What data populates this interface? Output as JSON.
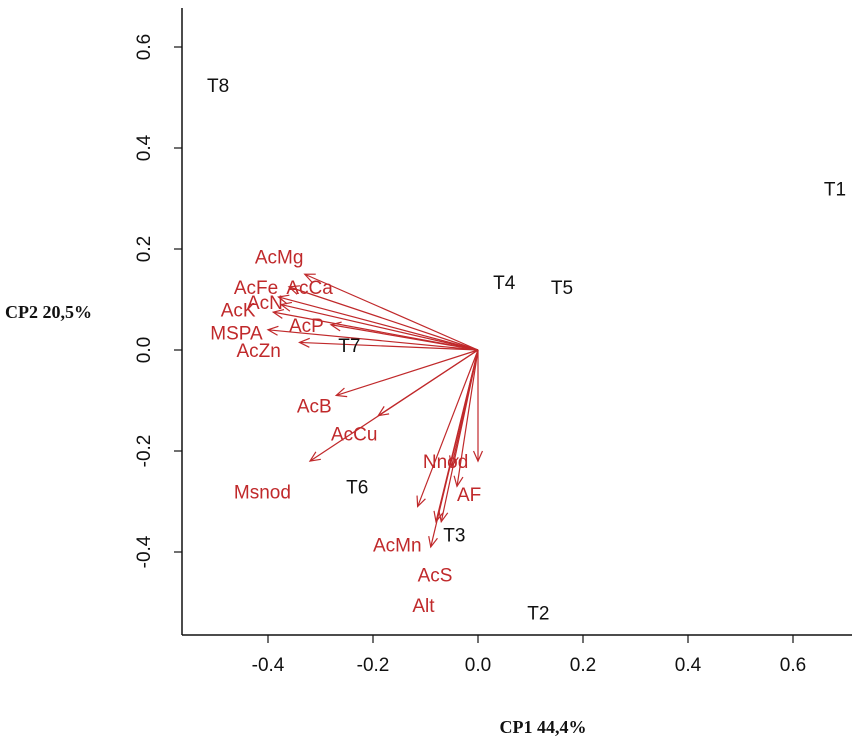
{
  "chart_data": {
    "type": "scatter",
    "subtype": "biplot",
    "title": "",
    "xlabel": "CP1 44,4%",
    "ylabel": "CP2 20,5%",
    "xlim": [
      -0.56,
      0.72
    ],
    "ylim": [
      -0.56,
      0.67
    ],
    "xticks": [
      -0.4,
      -0.2,
      0.0,
      0.2,
      0.4,
      0.6
    ],
    "yticks": [
      -0.4,
      -0.2,
      0.0,
      0.2,
      0.4,
      0.6
    ],
    "xtick_labels": [
      "-0.4",
      "-0.2",
      "0.0",
      "0.2",
      "0.4",
      "0.6"
    ],
    "ytick_labels": [
      "-0.4",
      "-0.2",
      "0.0",
      "0.2",
      "0.4",
      "0.6"
    ],
    "grid": false,
    "vector_color": "#c0292b",
    "observation_color": "#111111",
    "observations": [
      {
        "name": "T1",
        "x": 0.68,
        "y": 0.32
      },
      {
        "name": "T2",
        "x": 0.115,
        "y": -0.52
      },
      {
        "name": "T3",
        "x": -0.045,
        "y": -0.365
      },
      {
        "name": "T4",
        "x": 0.05,
        "y": 0.135
      },
      {
        "name": "T5",
        "x": 0.16,
        "y": 0.125
      },
      {
        "name": "T6",
        "x": -0.23,
        "y": -0.27
      },
      {
        "name": "T7",
        "x": -0.245,
        "y": 0.01
      },
      {
        "name": "T8",
        "x": -0.495,
        "y": 0.525
      }
    ],
    "variables": [
      {
        "name": "AcMg",
        "x": -0.33,
        "y": 0.15,
        "lx": -0.425,
        "ly": 0.185
      },
      {
        "name": "AcCa",
        "x": -0.36,
        "y": 0.125,
        "lx": -0.365,
        "ly": 0.125
      },
      {
        "name": "AcFe",
        "x": -0.38,
        "y": 0.105,
        "lx": -0.465,
        "ly": 0.125
      },
      {
        "name": "AcN",
        "x": -0.375,
        "y": 0.09,
        "lx": -0.44,
        "ly": 0.095
      },
      {
        "name": "AcK",
        "x": -0.39,
        "y": 0.075,
        "lx": -0.49,
        "ly": 0.08
      },
      {
        "name": "AcP",
        "x": -0.28,
        "y": 0.05,
        "lx": -0.36,
        "ly": 0.05
      },
      {
        "name": "MSPA",
        "x": -0.4,
        "y": 0.04,
        "lx": -0.51,
        "ly": 0.035
      },
      {
        "name": "AcZn",
        "x": -0.34,
        "y": 0.015,
        "lx": -0.46,
        "ly": 0.0
      },
      {
        "name": "AcB",
        "x": -0.27,
        "y": -0.09,
        "lx": -0.345,
        "ly": -0.11
      },
      {
        "name": "AcCu",
        "x": -0.19,
        "y": -0.13,
        "lx": -0.28,
        "ly": -0.165
      },
      {
        "name": "Msnod",
        "x": -0.32,
        "y": -0.22,
        "lx": -0.465,
        "ly": -0.28
      },
      {
        "name": "Nnod",
        "x": -0.05,
        "y": -0.23,
        "lx": -0.105,
        "ly": -0.22
      },
      {
        "name": "AF",
        "x": 0.0,
        "y": -0.22,
        "lx": -0.04,
        "ly": -0.285
      },
      {
        "name": "Vec1",
        "x": -0.115,
        "y": -0.31,
        "lx": null,
        "ly": null
      },
      {
        "name": "Vec2",
        "x": -0.08,
        "y": -0.34,
        "lx": null,
        "ly": null
      },
      {
        "name": "AcMn",
        "x": -0.09,
        "y": -0.39,
        "lx": -0.2,
        "ly": -0.385
      },
      {
        "name": "AcS",
        "x": -0.07,
        "y": -0.34,
        "lx": -0.115,
        "ly": -0.445
      },
      {
        "name": "Alt",
        "x": -0.04,
        "y": -0.27,
        "lx": -0.125,
        "ly": -0.505
      }
    ]
  }
}
